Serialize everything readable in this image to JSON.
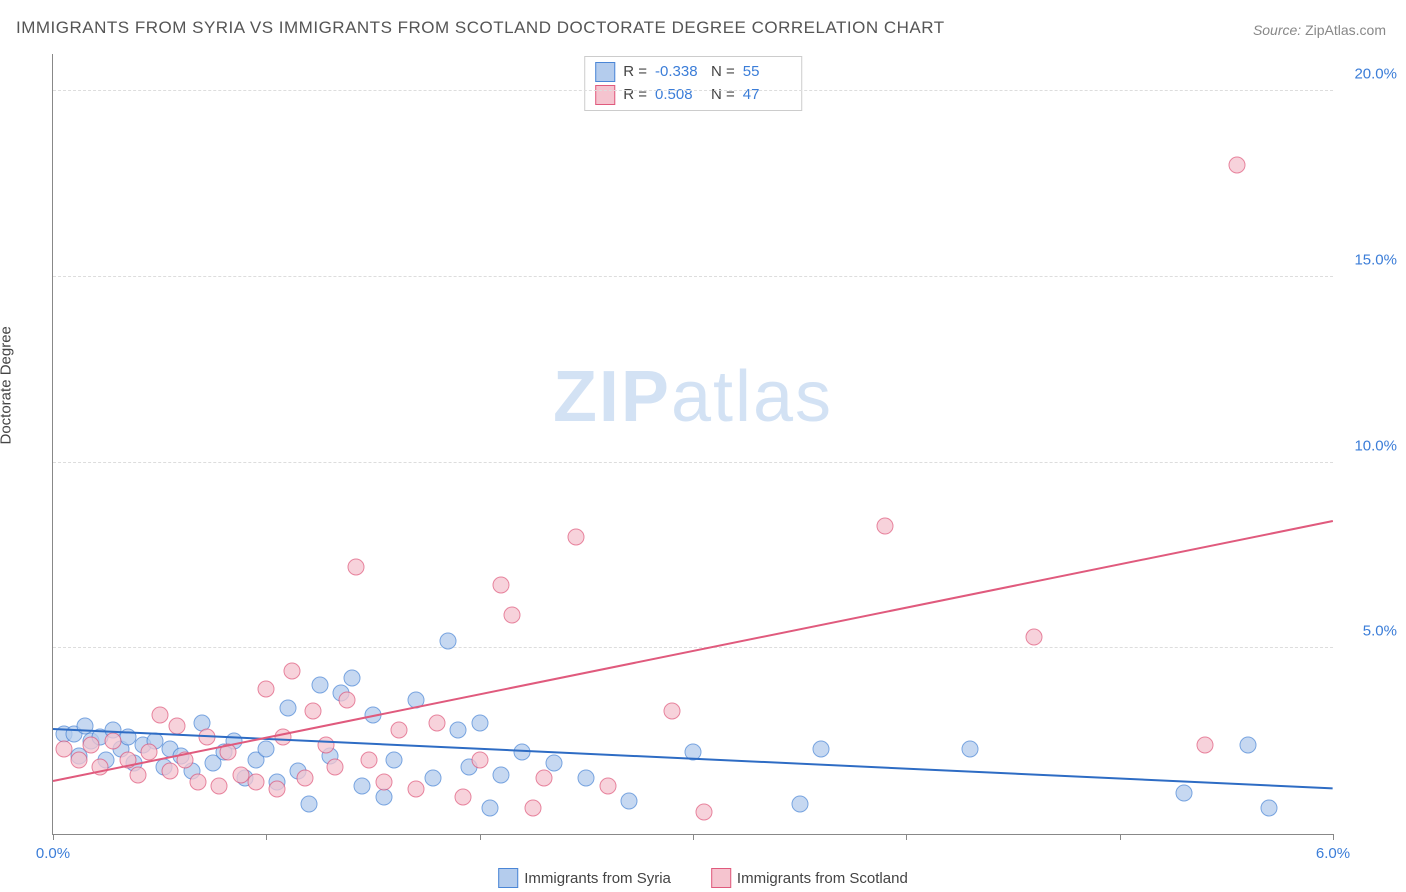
{
  "title": "IMMIGRANTS FROM SYRIA VS IMMIGRANTS FROM SCOTLAND DOCTORATE DEGREE CORRELATION CHART",
  "source_label": "Source: ",
  "source_value": "ZipAtlas.com",
  "ylabel": "Doctorate Degree",
  "watermark": {
    "part1": "ZIP",
    "part2": "atlas"
  },
  "chart": {
    "type": "scatter",
    "xlim": [
      0.0,
      6.0
    ],
    "ylim": [
      0.0,
      21.0
    ],
    "xticks": [
      0.0,
      1.0,
      2.0,
      3.0,
      4.0,
      5.0,
      6.0
    ],
    "xtick_labels": [
      "0.0%",
      "",
      "",
      "",
      "",
      "",
      "6.0%"
    ],
    "yticks": [
      5.0,
      10.0,
      15.0,
      20.0
    ],
    "ytick_labels": [
      "5.0%",
      "10.0%",
      "15.0%",
      "20.0%"
    ],
    "background_color": "#ffffff",
    "grid_color": "#dddddd",
    "axis_label_color": "#3b7dd8",
    "series": [
      {
        "name": "Immigrants from Syria",
        "fill": "#b4cced",
        "stroke": "#4b86d6",
        "trend": {
          "x1": 0.0,
          "y1": 2.8,
          "x2": 6.0,
          "y2": 1.2,
          "color": "#2e6cc4"
        },
        "marker_radius": 8.5,
        "points": [
          [
            0.05,
            2.7
          ],
          [
            0.1,
            2.7
          ],
          [
            0.12,
            2.1
          ],
          [
            0.15,
            2.9
          ],
          [
            0.18,
            2.5
          ],
          [
            0.22,
            2.6
          ],
          [
            0.25,
            2.0
          ],
          [
            0.28,
            2.8
          ],
          [
            0.32,
            2.3
          ],
          [
            0.35,
            2.6
          ],
          [
            0.38,
            1.9
          ],
          [
            0.42,
            2.4
          ],
          [
            0.48,
            2.5
          ],
          [
            0.52,
            1.8
          ],
          [
            0.55,
            2.3
          ],
          [
            0.6,
            2.1
          ],
          [
            0.65,
            1.7
          ],
          [
            0.7,
            3.0
          ],
          [
            0.75,
            1.9
          ],
          [
            0.8,
            2.2
          ],
          [
            0.85,
            2.5
          ],
          [
            0.9,
            1.5
          ],
          [
            0.95,
            2.0
          ],
          [
            1.0,
            2.3
          ],
          [
            1.05,
            1.4
          ],
          [
            1.1,
            3.4
          ],
          [
            1.15,
            1.7
          ],
          [
            1.2,
            0.8
          ],
          [
            1.25,
            4.0
          ],
          [
            1.3,
            2.1
          ],
          [
            1.35,
            3.8
          ],
          [
            1.4,
            4.2
          ],
          [
            1.45,
            1.3
          ],
          [
            1.5,
            3.2
          ],
          [
            1.55,
            1.0
          ],
          [
            1.6,
            2.0
          ],
          [
            1.7,
            3.6
          ],
          [
            1.78,
            1.5
          ],
          [
            1.85,
            5.2
          ],
          [
            1.9,
            2.8
          ],
          [
            1.95,
            1.8
          ],
          [
            2.0,
            3.0
          ],
          [
            2.05,
            0.7
          ],
          [
            2.1,
            1.6
          ],
          [
            2.2,
            2.2
          ],
          [
            2.35,
            1.9
          ],
          [
            2.5,
            1.5
          ],
          [
            2.7,
            0.9
          ],
          [
            3.0,
            2.2
          ],
          [
            3.5,
            0.8
          ],
          [
            3.6,
            2.3
          ],
          [
            4.3,
            2.3
          ],
          [
            5.3,
            1.1
          ],
          [
            5.6,
            2.4
          ],
          [
            5.7,
            0.7
          ]
        ]
      },
      {
        "name": "Immigrants from Scotland",
        "fill": "#f5c4cf",
        "stroke": "#e05a7d",
        "trend": {
          "x1": 0.0,
          "y1": 1.4,
          "x2": 6.0,
          "y2": 8.4,
          "color": "#e05a7d"
        },
        "marker_radius": 8.5,
        "points": [
          [
            0.05,
            2.3
          ],
          [
            0.12,
            2.0
          ],
          [
            0.18,
            2.4
          ],
          [
            0.22,
            1.8
          ],
          [
            0.28,
            2.5
          ],
          [
            0.35,
            2.0
          ],
          [
            0.4,
            1.6
          ],
          [
            0.45,
            2.2
          ],
          [
            0.5,
            3.2
          ],
          [
            0.55,
            1.7
          ],
          [
            0.58,
            2.9
          ],
          [
            0.62,
            2.0
          ],
          [
            0.68,
            1.4
          ],
          [
            0.72,
            2.6
          ],
          [
            0.78,
            1.3
          ],
          [
            0.82,
            2.2
          ],
          [
            0.88,
            1.6
          ],
          [
            0.95,
            1.4
          ],
          [
            1.0,
            3.9
          ],
          [
            1.05,
            1.2
          ],
          [
            1.08,
            2.6
          ],
          [
            1.12,
            4.4
          ],
          [
            1.18,
            1.5
          ],
          [
            1.22,
            3.3
          ],
          [
            1.28,
            2.4
          ],
          [
            1.32,
            1.8
          ],
          [
            1.38,
            3.6
          ],
          [
            1.42,
            7.2
          ],
          [
            1.48,
            2.0
          ],
          [
            1.55,
            1.4
          ],
          [
            1.62,
            2.8
          ],
          [
            1.7,
            1.2
          ],
          [
            1.8,
            3.0
          ],
          [
            1.92,
            1.0
          ],
          [
            2.0,
            2.0
          ],
          [
            2.1,
            6.7
          ],
          [
            2.15,
            5.9
          ],
          [
            2.25,
            0.7
          ],
          [
            2.3,
            1.5
          ],
          [
            2.45,
            8.0
          ],
          [
            2.6,
            1.3
          ],
          [
            2.9,
            3.3
          ],
          [
            3.05,
            0.6
          ],
          [
            3.9,
            8.3
          ],
          [
            4.6,
            5.3
          ],
          [
            5.4,
            2.4
          ],
          [
            5.55,
            18.0
          ]
        ]
      }
    ],
    "stats": [
      {
        "series": 0,
        "R": "-0.338",
        "N": "55"
      },
      {
        "series": 1,
        "R": "0.508",
        "N": "47"
      }
    ],
    "legend_labels": [
      "Immigrants from Syria",
      "Immigrants from Scotland"
    ]
  }
}
